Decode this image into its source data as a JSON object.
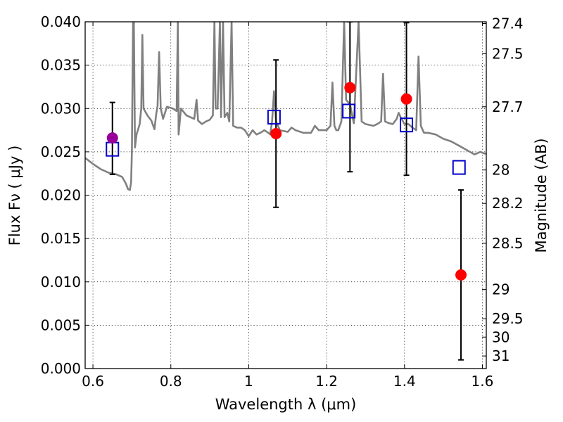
{
  "chart_data": {
    "type": "scatter",
    "xlabel": "Wavelength  λ (μm)",
    "ylabel": "Flux  Fν  ( μJy )",
    "y2label": "Magnitude (AB)",
    "xlim": [
      0.58,
      1.61
    ],
    "ylim": [
      0.0,
      0.04
    ],
    "grid": true,
    "x_ticks": [
      0.6,
      0.8,
      1.0,
      1.2,
      1.4,
      1.6
    ],
    "x_tick_labels": [
      "0.6",
      "0.8",
      "1",
      "1.2",
      "1.4",
      "1.6"
    ],
    "y_ticks": [
      0.0,
      0.005,
      0.01,
      0.015,
      0.02,
      0.025,
      0.03,
      0.035,
      0.04
    ],
    "y_tick_labels": [
      "0.000",
      "0.005",
      "0.010",
      "0.015",
      "0.020",
      "0.025",
      "0.030",
      "0.035",
      "0.040"
    ],
    "mag_ticks": [
      {
        "label": "27.4",
        "flux": 0.0398
      },
      {
        "label": "27.5",
        "flux": 0.03631
      },
      {
        "label": "27.7",
        "flux": 0.0302
      },
      {
        "label": "28",
        "flux": 0.02291
      },
      {
        "label": "28.2",
        "flux": 0.01905
      },
      {
        "label": "28.5",
        "flux": 0.01445
      },
      {
        "label": "29",
        "flux": 0.00912
      },
      {
        "label": "29.5",
        "flux": 0.00575
      },
      {
        "label": "30",
        "flux": 0.00363
      },
      {
        "label": "31",
        "flux": 0.00145
      }
    ],
    "model_spectrum": {
      "color": "#808080",
      "points": [
        [
          0.58,
          0.0243
        ],
        [
          0.6,
          0.0236
        ],
        [
          0.62,
          0.023
        ],
        [
          0.64,
          0.0226
        ],
        [
          0.66,
          0.0224
        ],
        [
          0.675,
          0.0221
        ],
        [
          0.685,
          0.0213
        ],
        [
          0.69,
          0.0207
        ],
        [
          0.695,
          0.0206
        ],
        [
          0.698,
          0.0215
        ],
        [
          0.7,
          0.025
        ],
        [
          0.703,
          0.04
        ],
        [
          0.705,
          0.04
        ],
        [
          0.708,
          0.0255
        ],
        [
          0.712,
          0.027
        ],
        [
          0.72,
          0.0282
        ],
        [
          0.724,
          0.03
        ],
        [
          0.727,
          0.0385
        ],
        [
          0.73,
          0.03
        ],
        [
          0.74,
          0.0292
        ],
        [
          0.75,
          0.0286
        ],
        [
          0.758,
          0.0276
        ],
        [
          0.762,
          0.0292
        ],
        [
          0.766,
          0.0303
        ],
        [
          0.77,
          0.0365
        ],
        [
          0.774,
          0.03
        ],
        [
          0.78,
          0.0288
        ],
        [
          0.79,
          0.0302
        ],
        [
          0.805,
          0.03
        ],
        [
          0.815,
          0.0297
        ],
        [
          0.818,
          0.04
        ],
        [
          0.82,
          0.027
        ],
        [
          0.826,
          0.03
        ],
        [
          0.84,
          0.0292
        ],
        [
          0.85,
          0.029
        ],
        [
          0.86,
          0.0288
        ],
        [
          0.866,
          0.031
        ],
        [
          0.87,
          0.0286
        ],
        [
          0.88,
          0.0282
        ],
        [
          0.89,
          0.0285
        ],
        [
          0.9,
          0.0287
        ],
        [
          0.908,
          0.0292
        ],
        [
          0.912,
          0.04
        ],
        [
          0.915,
          0.03
        ],
        [
          0.92,
          0.03
        ],
        [
          0.926,
          0.04
        ],
        [
          0.929,
          0.029
        ],
        [
          0.934,
          0.04
        ],
        [
          0.938,
          0.029
        ],
        [
          0.945,
          0.0295
        ],
        [
          0.95,
          0.0285
        ],
        [
          0.956,
          0.04
        ],
        [
          0.96,
          0.028
        ],
        [
          0.97,
          0.0278
        ],
        [
          0.98,
          0.0278
        ],
        [
          0.99,
          0.0275
        ],
        [
          1.0,
          0.0268
        ],
        [
          1.01,
          0.0275
        ],
        [
          1.02,
          0.027
        ],
        [
          1.03,
          0.0272
        ],
        [
          1.04,
          0.0275
        ],
        [
          1.05,
          0.0272
        ],
        [
          1.055,
          0.027
        ],
        [
          1.06,
          0.0285
        ],
        [
          1.065,
          0.032
        ],
        [
          1.07,
          0.0285
        ],
        [
          1.08,
          0.0275
        ],
        [
          1.1,
          0.0273
        ],
        [
          1.11,
          0.0278
        ],
        [
          1.12,
          0.0275
        ],
        [
          1.14,
          0.0272
        ],
        [
          1.16,
          0.0272
        ],
        [
          1.17,
          0.028
        ],
        [
          1.18,
          0.0275
        ],
        [
          1.19,
          0.0275
        ],
        [
          1.2,
          0.0275
        ],
        [
          1.21,
          0.028
        ],
        [
          1.215,
          0.033
        ],
        [
          1.22,
          0.028
        ],
        [
          1.225,
          0.0275
        ],
        [
          1.23,
          0.0275
        ],
        [
          1.238,
          0.0285
        ],
        [
          1.245,
          0.04
        ],
        [
          1.25,
          0.031
        ],
        [
          1.26,
          0.0305
        ],
        [
          1.27,
          0.0283
        ],
        [
          1.282,
          0.04
        ],
        [
          1.29,
          0.0285
        ],
        [
          1.3,
          0.0282
        ],
        [
          1.32,
          0.028
        ],
        [
          1.33,
          0.0282
        ],
        [
          1.34,
          0.0285
        ],
        [
          1.345,
          0.034
        ],
        [
          1.35,
          0.0285
        ],
        [
          1.36,
          0.0283
        ],
        [
          1.37,
          0.0282
        ],
        [
          1.38,
          0.0288
        ],
        [
          1.385,
          0.0295
        ],
        [
          1.39,
          0.029
        ],
        [
          1.4,
          0.0282
        ],
        [
          1.41,
          0.0282
        ],
        [
          1.42,
          0.0278
        ],
        [
          1.43,
          0.0275
        ],
        [
          1.436,
          0.036
        ],
        [
          1.442,
          0.028
        ],
        [
          1.45,
          0.0272
        ],
        [
          1.46,
          0.0272
        ],
        [
          1.48,
          0.027
        ],
        [
          1.5,
          0.0265
        ],
        [
          1.52,
          0.0262
        ],
        [
          1.54,
          0.0257
        ],
        [
          1.56,
          0.0252
        ],
        [
          1.58,
          0.0247
        ],
        [
          1.595,
          0.025
        ],
        [
          1.605,
          0.0248
        ],
        [
          1.61,
          0.0248
        ]
      ]
    },
    "observed_points": [
      {
        "x": 0.65,
        "y": 0.0266,
        "err_low": 0.0224,
        "err_high": 0.0307,
        "color": "#990099"
      },
      {
        "x": 1.07,
        "y": 0.0271,
        "err_low": 0.0186,
        "err_high": 0.0356,
        "color": "#ff0000"
      },
      {
        "x": 1.26,
        "y": 0.0324,
        "err_low": 0.0227,
        "err_high": 0.04,
        "color": "#ff0000"
      },
      {
        "x": 1.405,
        "y": 0.0311,
        "err_low": 0.0223,
        "err_high": 0.0399,
        "color": "#ff0000"
      },
      {
        "x": 1.545,
        "y": 0.0108,
        "err_low": 0.001,
        "err_high": 0.0206,
        "color": "#ff0000"
      }
    ],
    "model_points": [
      {
        "x": 0.65,
        "y": 0.0253,
        "color": "#0000cc"
      },
      {
        "x": 1.065,
        "y": 0.029,
        "color": "#0000cc"
      },
      {
        "x": 1.257,
        "y": 0.0297,
        "color": "#0000cc"
      },
      {
        "x": 1.405,
        "y": 0.0281,
        "color": "#0000cc"
      },
      {
        "x": 1.54,
        "y": 0.0232,
        "color": "#0000cc"
      }
    ],
    "colors": {
      "axis": "#000000",
      "grid": "#000000",
      "errorbar": "#000000"
    }
  }
}
